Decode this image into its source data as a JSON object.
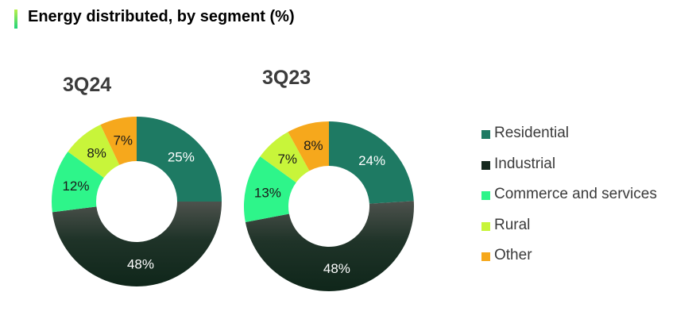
{
  "header": {
    "title": "Energy distributed, by segment (%)"
  },
  "chart_data": [
    {
      "type": "pie",
      "title": "3Q24",
      "categories": [
        "Residential",
        "Industrial",
        "Commerce and services",
        "Rural",
        "Other"
      ],
      "values": [
        25,
        48,
        12,
        8,
        7
      ],
      "value_labels": [
        "25%",
        "48%",
        "12%",
        "8%",
        "7%"
      ],
      "donut": true,
      "legend_placement": "right"
    },
    {
      "type": "pie",
      "title": "3Q23",
      "categories": [
        "Residential",
        "Industrial",
        "Commerce and services",
        "Rural",
        "Other"
      ],
      "values": [
        24,
        48,
        13,
        7,
        8
      ],
      "value_labels": [
        "24%",
        "48%",
        "13%",
        "7%",
        "8%"
      ],
      "donut": true,
      "legend_placement": "right"
    }
  ],
  "legend": [
    {
      "label": "Residential",
      "color": "#1e7a63"
    },
    {
      "label": "Industrial",
      "color": "#17291f"
    },
    {
      "label": "Commerce and services",
      "color": "#2ef58a"
    },
    {
      "label": "Rural",
      "color": "#c8f53a"
    },
    {
      "label": "Other",
      "color": "#f6a81c"
    }
  ],
  "colors": {
    "residential": "#1e7a63",
    "industrial": "#17291f",
    "commerce_and_services": "#2ef58a",
    "rural": "#c8f53a",
    "other": "#f6a81c",
    "label_light": "#ffffff",
    "label_dark": "#1a1a1a"
  }
}
